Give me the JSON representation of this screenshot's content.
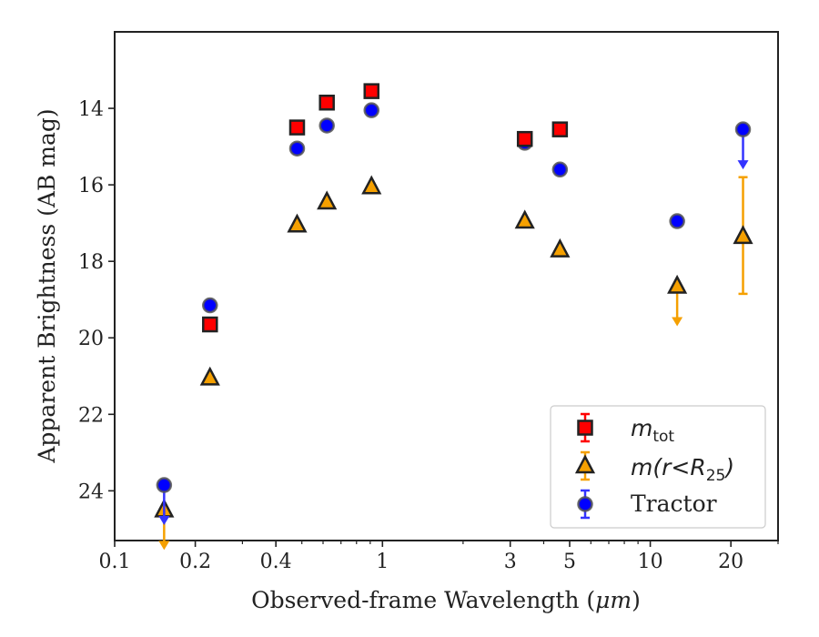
{
  "chart_data": {
    "type": "scatter",
    "xlabel": "Observed-frame Wavelength (",
    "xlabel_unit": "μm",
    "xlabel_close": ")",
    "ylabel": "Apparent Brightness (AB mag)",
    "x_scale": "log",
    "xlim": [
      0.1,
      30
    ],
    "ylim": [
      25.3,
      12.0
    ],
    "y_inverted": true,
    "grid": false,
    "legend_position": "bottom-right",
    "x_ticks": [
      {
        "value": 0.1,
        "label": "0.1"
      },
      {
        "value": 0.2,
        "label": "0.2"
      },
      {
        "value": 0.4,
        "label": "0.4"
      },
      {
        "value": 1,
        "label": "1"
      },
      {
        "value": 3,
        "label": "3"
      },
      {
        "value": 5,
        "label": "5"
      },
      {
        "value": 10,
        "label": "10"
      },
      {
        "value": 20,
        "label": "20"
      }
    ],
    "x_minor_ticks": [
      0.3,
      0.5,
      0.6,
      0.7,
      0.8,
      0.9,
      2,
      4,
      6,
      7,
      8,
      9,
      30
    ],
    "y_ticks": [
      {
        "value": 14,
        "label": "14"
      },
      {
        "value": 16,
        "label": "16"
      },
      {
        "value": 18,
        "label": "18"
      },
      {
        "value": 20,
        "label": "20"
      },
      {
        "value": 22,
        "label": "22"
      },
      {
        "value": 24,
        "label": "24"
      }
    ],
    "series": [
      {
        "name": "m_tot",
        "legend_main": "m",
        "legend_sub": "tot",
        "marker": "square",
        "color": "#ff0000",
        "errorbar_color": "#ff0000",
        "points": [
          {
            "x": 0.227,
            "y": 19.65
          },
          {
            "x": 0.48,
            "y": 14.5
          },
          {
            "x": 0.62,
            "y": 13.85
          },
          {
            "x": 0.91,
            "y": 13.55
          },
          {
            "x": 3.4,
            "y": 14.8
          },
          {
            "x": 4.6,
            "y": 14.55
          }
        ]
      },
      {
        "name": "m(r<R25)",
        "legend_main": "m(r<R",
        "legend_sub": "25",
        "legend_close": ")",
        "marker": "triangle",
        "color": "#f5a000",
        "errorbar_color": "#f5a000",
        "points": [
          {
            "x": 0.153,
            "y": 24.5,
            "upper_limit": true
          },
          {
            "x": 0.227,
            "y": 21.05
          },
          {
            "x": 0.48,
            "y": 17.05
          },
          {
            "x": 0.62,
            "y": 16.45
          },
          {
            "x": 0.91,
            "y": 16.05
          },
          {
            "x": 3.4,
            "y": 16.95
          },
          {
            "x": 4.6,
            "y": 17.7
          },
          {
            "x": 12.6,
            "y": 18.65,
            "upper_limit": true
          },
          {
            "x": 22.2,
            "y": 17.35,
            "err_low": 15.8,
            "err_high": 18.85
          }
        ]
      },
      {
        "name": "Tractor",
        "legend_main": "Tractor",
        "marker": "circle",
        "color": "#0000ff",
        "errorbar_color": "#3333ff",
        "points": [
          {
            "x": 0.153,
            "y": 23.85,
            "upper_limit": true
          },
          {
            "x": 0.227,
            "y": 19.15
          },
          {
            "x": 0.48,
            "y": 15.05
          },
          {
            "x": 0.62,
            "y": 14.45
          },
          {
            "x": 0.91,
            "y": 14.05
          },
          {
            "x": 3.4,
            "y": 14.9
          },
          {
            "x": 4.6,
            "y": 15.6
          },
          {
            "x": 12.6,
            "y": 16.95
          },
          {
            "x": 22.2,
            "y": 14.55,
            "upper_limit": true
          }
        ]
      }
    ]
  }
}
